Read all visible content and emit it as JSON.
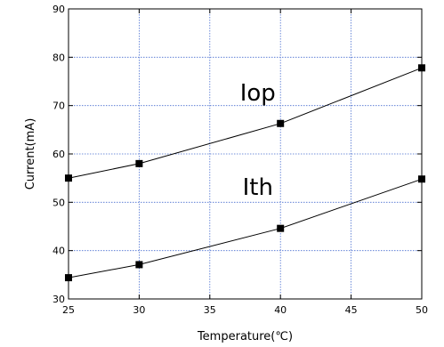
{
  "chart_data": {
    "type": "line",
    "xlabel": "Temperature(℃)",
    "ylabel": "Current(mA)",
    "xlim": [
      25,
      50
    ],
    "ylim": [
      30,
      90
    ],
    "xticks": [
      25,
      30,
      35,
      40,
      45,
      50
    ],
    "yticks": [
      30,
      40,
      50,
      60,
      70,
      80,
      90
    ],
    "xtick_labels": [
      "25",
      "30",
      "35",
      "40",
      "45",
      "50"
    ],
    "ytick_labels": [
      "30",
      "40",
      "50",
      "60",
      "70",
      "80",
      "90"
    ],
    "grid": true,
    "series": [
      {
        "name": "Iop",
        "x": [
          25,
          30,
          40,
          50
        ],
        "values": [
          55,
          58,
          66.3,
          77.8
        ]
      },
      {
        "name": "Ith",
        "x": [
          25,
          30,
          40,
          50
        ],
        "values": [
          34.4,
          37.1,
          44.6,
          54.8
        ]
      }
    ],
    "annotations": [
      {
        "text": "Iop",
        "x": 38.4,
        "y": 71
      },
      {
        "text": "Ith",
        "x": 38.4,
        "y": 51.5
      }
    ],
    "colors": {
      "line": "#000000",
      "grid": "#4a6fd0",
      "marker": "#000000"
    }
  }
}
